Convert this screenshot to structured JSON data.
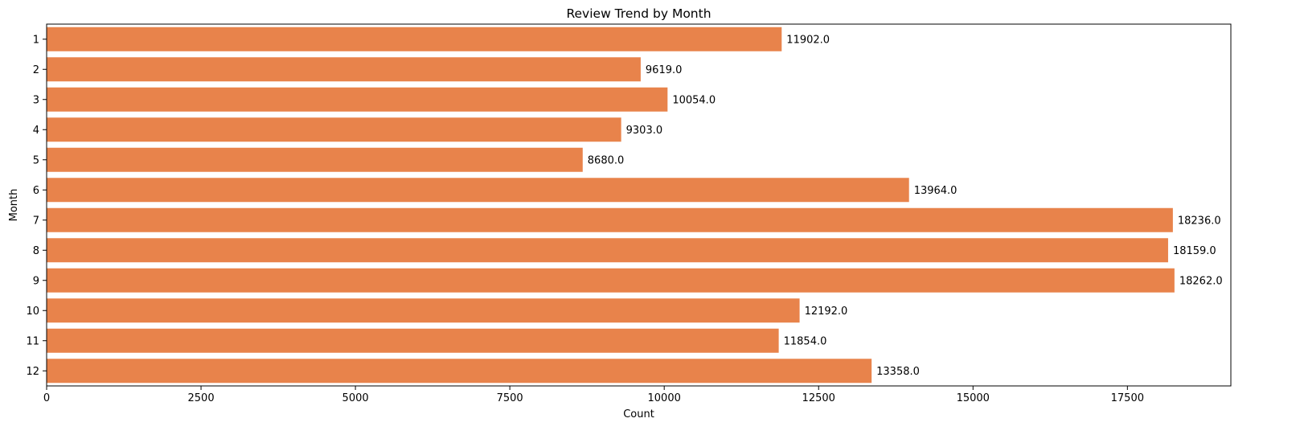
{
  "chart_data": {
    "type": "bar",
    "orientation": "horizontal",
    "title": "Review Trend by Month",
    "xlabel": "Count",
    "ylabel": "Month",
    "categories": [
      "1",
      "2",
      "3",
      "4",
      "5",
      "6",
      "7",
      "8",
      "9",
      "10",
      "11",
      "12"
    ],
    "values": [
      11902,
      9619,
      10054,
      9303,
      8680,
      13964,
      18236,
      18159,
      18262,
      12192,
      11854,
      13358
    ],
    "value_labels": [
      "11902.0",
      "9619.0",
      "10054.0",
      "9303.0",
      "8680.0",
      "13964.0",
      "18236.0",
      "18159.0",
      "18262.0",
      "12192.0",
      "11854.0",
      "13358.0"
    ],
    "xticks": [
      0,
      2500,
      5000,
      7500,
      10000,
      12500,
      15000,
      17500
    ],
    "xtick_labels": [
      "0",
      "2500",
      "5000",
      "7500",
      "10000",
      "12500",
      "15000",
      "17500"
    ],
    "xlim": [
      0,
      19175
    ],
    "grid": false,
    "bar_color": "#e8834b"
  }
}
